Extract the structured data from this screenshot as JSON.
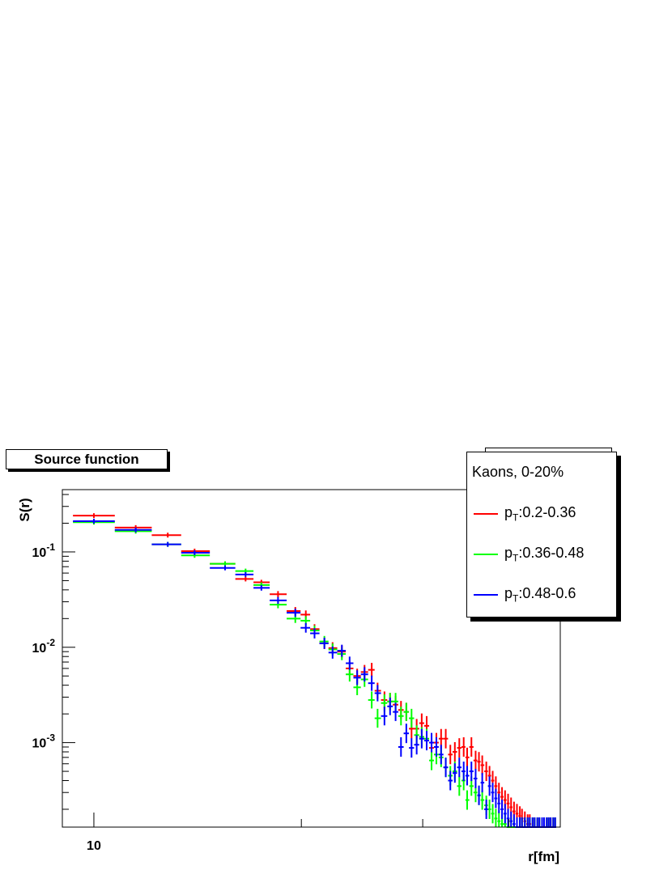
{
  "chart_data": {
    "type": "scatter",
    "title": "Source function",
    "xlabel": "r[fm]",
    "ylabel": "S(r)",
    "xscale": "log",
    "yscale": "log",
    "xlim": [
      9.0,
      47.5
    ],
    "ylim": [
      0.00013,
      0.45
    ],
    "x_ticks_labeled": [
      10
    ],
    "y_ticks_labeled": [
      {
        "value": 0.1,
        "base": "10",
        "exp": "-1"
      },
      {
        "value": 0.01,
        "base": "10",
        "exp": "-2"
      },
      {
        "value": 0.001,
        "base": "10",
        "exp": "-3"
      }
    ],
    "grid": false,
    "legend": {
      "placement": "top-right",
      "header": "Kaons, 0-20%",
      "entries": [
        {
          "prefix": "p",
          "sub": "T",
          "range": ":0.2-0.36"
        },
        {
          "prefix": "p",
          "sub": "T",
          "range": ":0.36-0.48"
        },
        {
          "prefix": "p",
          "sub": "T",
          "range": ":0.48-0.6"
        }
      ]
    },
    "series": [
      {
        "name": "pT:0.2-0.36",
        "color": "#ff0000",
        "x": [
          10.0,
          11.5,
          12.8,
          14.0,
          15.5,
          16.6,
          17.5,
          18.5,
          19.6,
          20.3,
          20.9,
          21.6,
          22.2,
          22.9,
          23.5,
          24.1,
          24.7,
          25.3,
          25.8,
          26.4,
          26.9,
          27.4,
          27.9,
          28.4,
          28.9,
          29.4,
          29.9,
          30.4,
          30.9,
          31.4,
          31.9,
          32.4,
          32.9,
          33.4,
          33.9,
          34.4,
          34.8,
          35.3,
          35.8,
          36.2,
          36.6,
          37.1,
          37.5,
          37.9,
          38.3,
          38.7,
          39.1,
          39.5,
          39.9,
          40.3,
          40.7,
          41.1,
          41.5,
          41.8,
          42.2,
          42.6,
          42.9,
          43.3,
          43.6,
          44.0,
          44.3,
          44.7,
          45.0,
          45.4,
          45.7,
          46.0,
          46.4,
          46.7
        ],
        "y": [
          0.24,
          0.18,
          0.15,
          0.102,
          0.075,
          0.052,
          0.048,
          0.036,
          0.024,
          0.022,
          0.0155,
          0.011,
          0.0098,
          0.009,
          0.006,
          0.005,
          0.0055,
          0.0058,
          0.0035,
          0.0028,
          0.0027,
          0.0025,
          0.0022,
          0.0021,
          0.0014,
          0.0014,
          0.0016,
          0.0015,
          0.00088,
          0.001,
          0.0011,
          0.0011,
          0.00075,
          0.0008,
          0.00088,
          0.0009,
          0.0007,
          0.0009,
          0.00065,
          0.00063,
          0.00058,
          0.0005,
          0.00045,
          0.0004,
          0.00035,
          0.0003,
          0.00027,
          0.00025,
          0.00023,
          0.00021,
          0.00019,
          0.00018,
          0.00017,
          0.00016,
          0.00015,
          0.00014,
          0.00014,
          0.00013,
          0.00013,
          0.00013,
          0.00013,
          0.00013,
          0.00013,
          0.00013,
          0.00013,
          0.00013,
          0.00013,
          0.00013
        ]
      },
      {
        "name": "pT:0.36-0.48",
        "color": "#00ff00",
        "x": [
          10.0,
          11.5,
          12.8,
          14.0,
          15.5,
          16.6,
          17.5,
          18.5,
          19.6,
          20.3,
          20.9,
          21.6,
          22.2,
          22.9,
          23.5,
          24.1,
          24.7,
          25.3,
          25.8,
          26.4,
          26.9,
          27.4,
          27.9,
          28.4,
          28.9,
          29.4,
          29.9,
          30.4,
          30.9,
          31.4,
          31.9,
          32.4,
          32.9,
          33.4,
          33.9,
          34.4,
          34.8,
          35.3,
          35.8,
          36.2,
          36.6,
          37.1,
          37.5,
          37.9,
          38.3,
          38.7,
          39.1,
          39.5,
          39.9,
          40.3,
          40.7,
          41.1,
          41.5,
          41.8,
          42.2,
          42.6,
          42.9,
          43.3,
          43.6,
          44.0,
          44.3,
          44.7,
          45.0,
          45.4,
          45.7,
          46.0,
          46.4,
          46.7
        ],
        "y": [
          0.205,
          0.165,
          0.12,
          0.092,
          0.075,
          0.063,
          0.045,
          0.028,
          0.02,
          0.019,
          0.015,
          0.0115,
          0.0095,
          0.0085,
          0.0052,
          0.0038,
          0.0046,
          0.0028,
          0.0018,
          0.0026,
          0.0027,
          0.0027,
          0.0019,
          0.0021,
          0.0018,
          0.0012,
          0.00115,
          0.0011,
          0.00065,
          0.00075,
          0.0007,
          0.00055,
          0.00045,
          0.0005,
          0.00035,
          0.0004,
          0.00025,
          0.00035,
          0.0003,
          0.00028,
          0.00025,
          0.00022,
          0.0002,
          0.00018,
          0.00016,
          0.00015,
          0.00014,
          0.00014,
          0.00013,
          0.00013,
          0.00013,
          0.00013,
          0.00013,
          0.00013,
          0.00013,
          0.00013,
          0.00013,
          0.00013,
          0.00013,
          0.00013,
          0.00013,
          0.00013,
          0.00013,
          0.00013,
          0.00013,
          0.00013,
          0.00013,
          0.00013
        ]
      },
      {
        "name": "pT:0.48-0.6",
        "color": "#0000ff",
        "x": [
          10.0,
          11.5,
          12.8,
          14.0,
          15.5,
          16.6,
          17.5,
          18.5,
          19.6,
          20.3,
          20.9,
          21.6,
          22.2,
          22.9,
          23.5,
          24.1,
          24.7,
          25.3,
          25.8,
          26.4,
          26.9,
          27.4,
          27.9,
          28.4,
          28.9,
          29.4,
          29.9,
          30.4,
          30.9,
          31.4,
          31.9,
          32.4,
          32.9,
          33.4,
          33.9,
          34.4,
          34.8,
          35.3,
          35.8,
          36.2,
          36.6,
          37.1,
          37.5,
          37.9,
          38.3,
          38.7,
          39.1,
          39.5,
          39.9,
          40.3,
          40.7,
          41.1,
          41.5,
          41.8,
          42.2,
          42.6,
          42.9,
          43.3,
          43.6,
          44.0,
          44.3,
          44.7,
          45.0,
          45.4,
          45.7,
          46.0,
          46.4,
          46.7
        ],
        "y": [
          0.21,
          0.17,
          0.12,
          0.098,
          0.068,
          0.058,
          0.042,
          0.031,
          0.023,
          0.016,
          0.014,
          0.011,
          0.0088,
          0.0092,
          0.0068,
          0.0048,
          0.0052,
          0.0042,
          0.0033,
          0.0019,
          0.0024,
          0.0021,
          0.0009,
          0.00125,
          0.00088,
          0.00095,
          0.0011,
          0.00105,
          0.001,
          0.0009,
          0.00075,
          0.00055,
          0.0004,
          0.00048,
          0.00055,
          0.0005,
          0.00045,
          0.0005,
          0.00042,
          0.00028,
          0.00038,
          0.0002,
          0.00035,
          0.0003,
          0.00026,
          0.00023,
          0.0002,
          0.00018,
          0.00016,
          0.00015,
          0.00014,
          0.00013,
          0.00013,
          0.00013,
          0.00013,
          0.00013,
          0.00013,
          0.00013,
          0.00013,
          0.00013,
          0.00013,
          0.00013,
          0.00013,
          0.00013,
          0.00013,
          0.00013,
          0.00013,
          0.00013
        ]
      }
    ]
  }
}
